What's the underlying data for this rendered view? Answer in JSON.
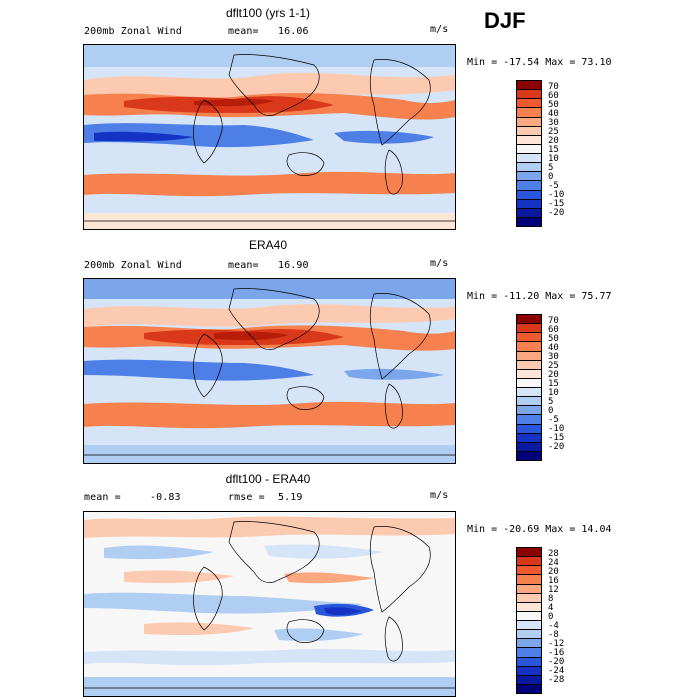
{
  "season": "DJF",
  "panels": [
    {
      "title": "dflt100 (yrs 1-1)",
      "left_label": "200mb Zonal Wind",
      "stat_label": "mean=",
      "stat_value": "16.06",
      "extra_label": "",
      "extra_value": "",
      "units": "m/s",
      "minmax": "Min = -17.54 Max =  73.10",
      "colorbar_labels": [
        "70",
        "60",
        "50",
        "40",
        "30",
        "25",
        "20",
        "15",
        "10",
        "5",
        "0",
        "-5",
        "-10",
        "-15",
        "-20"
      ],
      "colors": [
        "#8b0000",
        "#b81d0a",
        "#d9381a",
        "#ee5a2e",
        "#f7804f",
        "#fba77f",
        "#fccab0",
        "#fde6d6",
        "#f7f7f7",
        "#d6e4f7",
        "#b0cdf2",
        "#7ba6ec",
        "#4d7fe6",
        "#2a56dc",
        "#1433c4",
        "#0a1a9e",
        "#00007a"
      ],
      "map_style": "model"
    },
    {
      "title": "ERA40",
      "left_label": "200mb Zonal Wind",
      "stat_label": "mean=",
      "stat_value": "16.90",
      "extra_label": "",
      "extra_value": "",
      "units": "m/s",
      "minmax": "Min = -11.20 Max =  75.77",
      "colorbar_labels": [
        "70",
        "60",
        "50",
        "40",
        "30",
        "25",
        "20",
        "15",
        "10",
        "5",
        "0",
        "-5",
        "-10",
        "-15",
        "-20"
      ],
      "colors": [
        "#8b0000",
        "#b81d0a",
        "#d9381a",
        "#ee5a2e",
        "#f7804f",
        "#fba77f",
        "#fccab0",
        "#fde6d6",
        "#f7f7f7",
        "#d6e4f7",
        "#b0cdf2",
        "#7ba6ec",
        "#4d7fe6",
        "#2a56dc",
        "#1433c4",
        "#0a1a9e",
        "#00007a"
      ],
      "map_style": "obs"
    },
    {
      "title": "dflt100 - ERA40",
      "left_label": "mean =",
      "stat_label": "",
      "stat_value": "-0.83",
      "extra_label": "rmse =",
      "extra_value": "5.19",
      "units": "m/s",
      "minmax": "Min = -20.69 Max =  14.04",
      "colorbar_labels": [
        "28",
        "24",
        "20",
        "16",
        "12",
        "8",
        "4",
        "0",
        "-4",
        "-8",
        "-12",
        "-16",
        "-20",
        "-24",
        "-28"
      ],
      "colors": [
        "#8b0000",
        "#b81d0a",
        "#d9381a",
        "#ee5a2e",
        "#f7804f",
        "#fba77f",
        "#fccab0",
        "#fde6d6",
        "#f7f7f7",
        "#d6e4f7",
        "#b0cdf2",
        "#7ba6ec",
        "#4d7fe6",
        "#2a56dc",
        "#1433c4",
        "#0a1a9e",
        "#00007a"
      ],
      "map_style": "diff"
    }
  ]
}
